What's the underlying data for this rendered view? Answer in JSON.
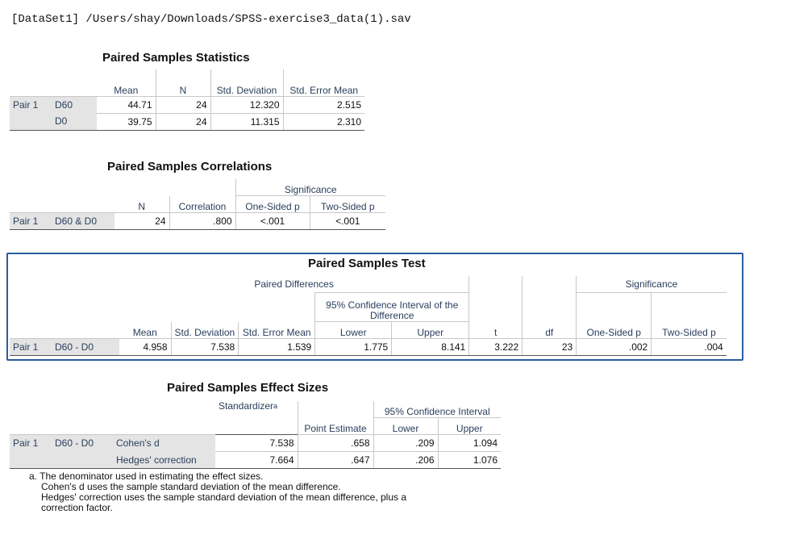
{
  "dataset_line": "[DataSet1] /Users/shay/Downloads/SPSS-exercise3_data(1).sav",
  "stats": {
    "title": "Paired Samples Statistics",
    "headers": [
      "Mean",
      "N",
      "Std. Deviation",
      "Std. Error Mean"
    ],
    "pair": "Pair 1",
    "rows": [
      {
        "label": "D60",
        "mean": "44.71",
        "n": "24",
        "sd": "12.320",
        "se": "2.515"
      },
      {
        "label": "D0",
        "mean": "39.75",
        "n": "24",
        "sd": "11.315",
        "se": "2.310"
      }
    ]
  },
  "corr": {
    "title": "Paired Samples Correlations",
    "significance": "Significance",
    "headers": [
      "N",
      "Correlation",
      "One-Sided p",
      "Two-Sided p"
    ],
    "pair": "Pair 1",
    "label": "D60 & D0",
    "n": "24",
    "correlation": ".800",
    "one_sided": "<.001",
    "two_sided": "<.001"
  },
  "test": {
    "title": "Paired Samples Test",
    "paired_differences": "Paired Differences",
    "ci_header": "95% Confidence Interval of the Difference",
    "significance": "Significance",
    "headers": [
      "Mean",
      "Std. Deviation",
      "Std. Error Mean",
      "Lower",
      "Upper",
      "t",
      "df",
      "One-Sided p",
      "Two-Sided p"
    ],
    "pair": "Pair 1",
    "label": "D60 - D0",
    "values": [
      "4.958",
      "7.538",
      "1.539",
      "1.775",
      "8.141",
      "3.222",
      "23",
      ".002",
      ".004"
    ]
  },
  "effect": {
    "title": "Paired Samples Effect Sizes",
    "standardizer": "Standardizer",
    "sup": "a",
    "point_estimate": "Point Estimate",
    "ci_header": "95% Confidence Interval",
    "lower": "Lower",
    "upper": "Upper",
    "pair": "Pair 1",
    "label": "D60 - D0",
    "rows": [
      {
        "name": "Cohen's d",
        "standardizer": "7.538",
        "point": ".658",
        "lower": ".209",
        "upper": "1.094"
      },
      {
        "name": "Hedges' correction",
        "standardizer": "7.664",
        "point": ".647",
        "lower": ".206",
        "upper": "1.076"
      }
    ],
    "footnote": [
      "a. The denominator used in estimating the effect sizes.",
      "Cohen's d uses the sample standard deviation of the mean difference.",
      "Hedges' correction uses the sample standard deviation of the mean difference, plus a",
      "correction factor."
    ]
  }
}
